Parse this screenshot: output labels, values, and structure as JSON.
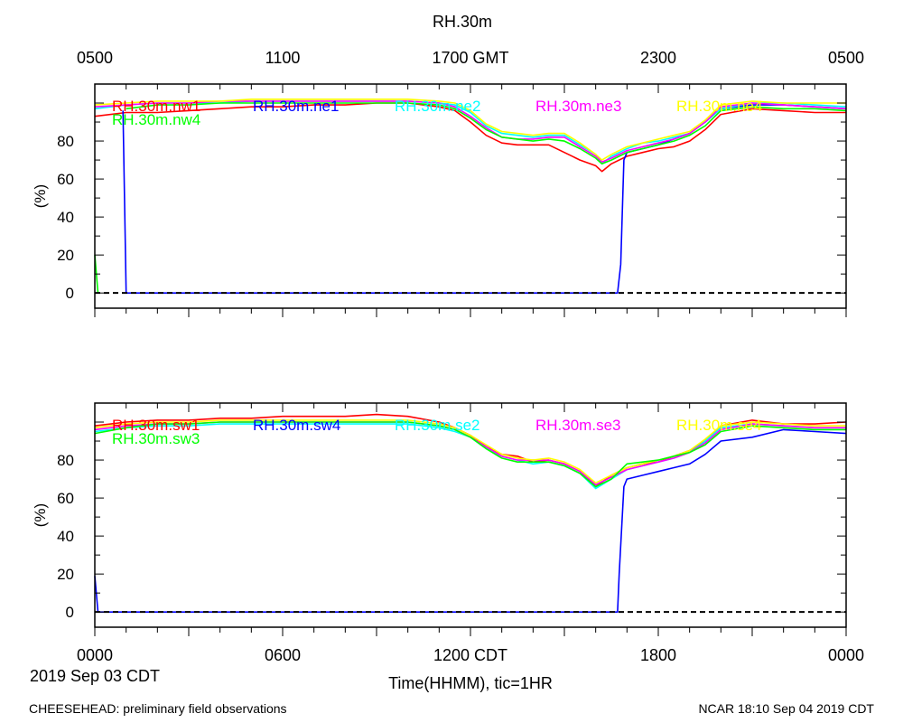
{
  "figure": {
    "title": "RH.30m",
    "top_time_labels": [
      "0500",
      "1100",
      "1700 GMT",
      "2300",
      "0500"
    ],
    "bottom_time_labels": [
      "0000",
      "0600",
      "1200 CDT",
      "1800",
      "0000"
    ],
    "date_label": "2019 Sep 03 CDT",
    "x_axis_label": "Time(HHMM), tic=1HR",
    "footer_left": "CHEESEHEAD: preliminary field observations",
    "footer_right": "NCAR 18:10 Sep 04 2019 CDT"
  },
  "chart_data": [
    {
      "type": "line",
      "ylabel": "(%)",
      "xlim_hours": [
        0,
        24
      ],
      "ylim": [
        -8,
        110
      ],
      "yticks": [
        0,
        20,
        40,
        60,
        80
      ],
      "zero_line": "dashed",
      "series": [
        {
          "name": "RH.30m.nw1",
          "color": "#ff0000",
          "x": [
            0,
            1,
            2,
            3,
            4,
            5,
            6,
            7,
            8,
            9,
            10,
            11,
            11.5,
            12,
            12.5,
            13,
            13.5,
            14,
            14.5,
            15,
            15.5,
            16,
            16.2,
            16.5,
            17,
            17.5,
            18,
            18.5,
            19,
            19.5,
            20,
            21,
            22,
            23,
            24
          ],
          "y": [
            93,
            95,
            95,
            96,
            97,
            98,
            98,
            99,
            99,
            100,
            100,
            98,
            96,
            90,
            83,
            79,
            78,
            78,
            78,
            74,
            70,
            67,
            64,
            68,
            72,
            74,
            76,
            77,
            80,
            86,
            94,
            97,
            96,
            95,
            95
          ]
        },
        {
          "name": "RH.30m.ne1",
          "color": "#0000ff",
          "x": [
            0,
            0.8,
            0.9,
            1.0,
            16.7,
            16.8,
            16.9,
            17,
            17.5,
            18,
            18.5,
            19,
            19.5,
            20,
            21,
            22,
            23,
            24
          ],
          "y": [
            null,
            null,
            96,
            0,
            0,
            15,
            70,
            74,
            76,
            78,
            81,
            84,
            90,
            97,
            99,
            99,
            98,
            97
          ]
        },
        {
          "name": "RH.30m.ne2",
          "color": "#00ffff",
          "x": [
            0,
            1,
            2,
            3,
            4,
            5,
            6,
            7,
            8,
            9,
            10,
            11,
            11.5,
            12,
            12.5,
            13,
            13.5,
            14,
            14.5,
            15,
            15.5,
            16,
            16.2,
            16.5,
            17,
            17.5,
            18,
            18.5,
            19,
            19.5,
            20,
            21,
            22,
            23,
            24
          ],
          "y": [
            97,
            99,
            100,
            100,
            100,
            101,
            101,
            101,
            101,
            101,
            101,
            100,
            99,
            95,
            88,
            84,
            83,
            82,
            83,
            83,
            78,
            73,
            68,
            72,
            76,
            79,
            80,
            82,
            84,
            90,
            97,
            100,
            100,
            99,
            98
          ]
        },
        {
          "name": "RH.30m.ne3",
          "color": "#ff00ff",
          "x": [
            0,
            1,
            2,
            3,
            4,
            5,
            6,
            7,
            8,
            9,
            10,
            11,
            11.5,
            12,
            12.5,
            13,
            13.5,
            14,
            14.5,
            15,
            15.5,
            16,
            16.2,
            16.5,
            17,
            17.5,
            18,
            18.5,
            19,
            19.5,
            20,
            21,
            22,
            23,
            24
          ],
          "y": [
            98,
            99,
            100,
            100,
            101,
            101,
            101,
            101,
            101,
            101,
            101,
            100,
            98,
            93,
            87,
            82,
            81,
            81,
            82,
            82,
            77,
            72,
            69,
            71,
            75,
            77,
            79,
            81,
            84,
            90,
            98,
            100,
            99,
            98,
            97
          ]
        },
        {
          "name": "RH.30m.ne4",
          "color": "#ffff00",
          "x": [
            0,
            1,
            2,
            3,
            4,
            5,
            6,
            7,
            8,
            9,
            10,
            11,
            11.5,
            12,
            12.5,
            13,
            13.5,
            14,
            14.5,
            15,
            15.5,
            16,
            16.2,
            16.5,
            17,
            17.5,
            18,
            18.5,
            19,
            19.5,
            20,
            21,
            22,
            23,
            24
          ],
          "y": [
            99,
            100,
            101,
            101,
            101,
            102,
            102,
            102,
            102,
            102,
            102,
            101,
            100,
            96,
            89,
            85,
            84,
            83,
            84,
            84,
            79,
            73,
            70,
            73,
            77,
            79,
            81,
            83,
            85,
            91,
            99,
            101,
            100,
            100,
            100
          ]
        },
        {
          "name": "RH.30m.nw4",
          "color": "#00ff00",
          "x": [
            0,
            0.1,
            0.2,
            1,
            2,
            3,
            4,
            5,
            6,
            7,
            8,
            9,
            10,
            11,
            11.5,
            12,
            12.5,
            13,
            13.5,
            14,
            14.5,
            15,
            15.5,
            16,
            16.2,
            16.5,
            17,
            17.5,
            18,
            18.5,
            19,
            19.5,
            20,
            21,
            22,
            23,
            24
          ],
          "y": [
            20,
            0,
            null,
            97,
            99,
            99,
            100,
            100,
            100,
            100,
            100,
            100,
            100,
            99,
            97,
            92,
            86,
            82,
            81,
            80,
            81,
            80,
            76,
            71,
            68,
            70,
            74,
            76,
            78,
            80,
            83,
            88,
            96,
            98,
            97,
            97,
            96
          ]
        }
      ]
    },
    {
      "type": "line",
      "ylabel": "(%)",
      "xlim_hours": [
        0,
        24
      ],
      "ylim": [
        -8,
        110
      ],
      "yticks": [
        0,
        20,
        40,
        60,
        80
      ],
      "zero_line": "dashed",
      "series": [
        {
          "name": "RH.30m.sw1",
          "color": "#ff0000",
          "x": [
            0,
            1,
            2,
            3,
            4,
            5,
            6,
            7,
            8,
            9,
            10,
            11,
            11.5,
            12,
            12.5,
            13,
            13.5,
            14,
            14.5,
            15,
            15.5,
            16,
            16.5,
            17,
            17.5,
            18,
            18.5,
            19,
            19.5,
            20,
            21,
            22,
            23,
            24
          ],
          "y": [
            98,
            100,
            101,
            101,
            102,
            102,
            103,
            103,
            103,
            104,
            103,
            100,
            97,
            93,
            87,
            83,
            82,
            79,
            80,
            78,
            74,
            66,
            72,
            76,
            78,
            79,
            82,
            85,
            90,
            98,
            101,
            99,
            99,
            100
          ]
        },
        {
          "name": "RH.30m.sw4",
          "color": "#0000ff",
          "x": [
            0,
            0.1,
            0.2,
            16.7,
            16.75,
            16.9,
            17,
            17.5,
            18,
            18.5,
            19,
            19.5,
            20,
            21,
            22,
            23,
            24
          ],
          "y": [
            19,
            0,
            0,
            0,
            20,
            66,
            70,
            72,
            74,
            76,
            78,
            83,
            90,
            92,
            96,
            95,
            94
          ]
        },
        {
          "name": "RH.30m.se2",
          "color": "#00ffff",
          "x": [
            0,
            1,
            2,
            3,
            4,
            5,
            6,
            7,
            8,
            9,
            10,
            11,
            11.5,
            12,
            12.5,
            13,
            13.5,
            14,
            14.5,
            15,
            15.5,
            16,
            16.5,
            17,
            17.5,
            18,
            18.5,
            19,
            19.5,
            20,
            21,
            22,
            23,
            24
          ],
          "y": [
            95,
            97,
            98,
            98,
            99,
            99,
            99,
            99,
            99,
            99,
            99,
            97,
            95,
            92,
            86,
            82,
            80,
            78,
            79,
            77,
            73,
            65,
            70,
            75,
            77,
            79,
            81,
            84,
            90,
            97,
            99,
            98,
            97,
            97
          ]
        },
        {
          "name": "RH.30m.se3",
          "color": "#ff00ff",
          "x": [
            0,
            1,
            2,
            3,
            4,
            5,
            6,
            7,
            8,
            9,
            10,
            11,
            11.5,
            12,
            12.5,
            13,
            13.5,
            14,
            14.5,
            15,
            15.5,
            16,
            16.5,
            17,
            17.5,
            18,
            18.5,
            19,
            19.5,
            20,
            21,
            22,
            23,
            24
          ],
          "y": [
            96,
            98,
            99,
            99,
            100,
            100,
            100,
            100,
            100,
            100,
            100,
            98,
            96,
            92,
            87,
            82,
            80,
            80,
            80,
            78,
            74,
            67,
            71,
            75,
            77,
            79,
            81,
            84,
            89,
            96,
            99,
            98,
            97,
            97
          ]
        },
        {
          "name": "RH.30m.se4",
          "color": "#ffff00",
          "x": [
            0,
            1,
            2,
            3,
            4,
            5,
            6,
            7,
            8,
            9,
            10,
            11,
            11.5,
            12,
            12.5,
            13,
            13.5,
            14,
            14.5,
            15,
            15.5,
            16,
            16.5,
            17,
            17.5,
            18,
            18.5,
            19,
            19.5,
            20,
            21,
            22,
            23,
            24
          ],
          "y": [
            97,
            99,
            100,
            100,
            101,
            101,
            101,
            101,
            101,
            101,
            101,
            99,
            97,
            93,
            88,
            83,
            81,
            80,
            81,
            79,
            75,
            68,
            72,
            76,
            78,
            80,
            82,
            85,
            91,
            98,
            100,
            99,
            98,
            98
          ]
        },
        {
          "name": "RH.30m.sw3",
          "color": "#00ff00",
          "x": [
            0,
            1,
            2,
            3,
            4,
            5,
            6,
            7,
            8,
            9,
            10,
            11,
            11.5,
            12,
            12.5,
            13,
            13.5,
            14,
            14.5,
            15,
            15.5,
            16,
            16.5,
            17,
            17.5,
            18,
            18.5,
            19,
            19.5,
            20,
            21,
            22,
            23,
            24
          ],
          "y": [
            94,
            97,
            99,
            99,
            100,
            100,
            100,
            100,
            100,
            100,
            100,
            98,
            96,
            92,
            86,
            81,
            79,
            79,
            79,
            77,
            73,
            66,
            70,
            78,
            79,
            80,
            82,
            84,
            88,
            95,
            98,
            97,
            96,
            96
          ]
        }
      ]
    }
  ]
}
